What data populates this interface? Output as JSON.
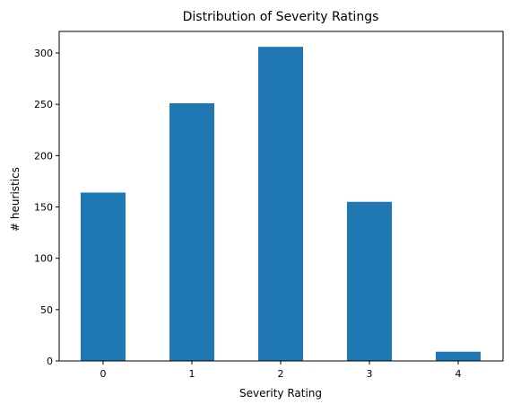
{
  "chart_data": {
    "type": "bar",
    "title": "Distribution of Severity Ratings",
    "xlabel": "Severity Rating",
    "ylabel": "# heuristics",
    "categories": [
      "0",
      "1",
      "2",
      "3",
      "4"
    ],
    "values": [
      164,
      251,
      306,
      155,
      9
    ],
    "ylim": [
      0,
      321
    ],
    "yticks": [
      "0",
      "50",
      "100",
      "150",
      "200",
      "250",
      "300"
    ],
    "grid": false,
    "legend": "none",
    "bar_color": "#1f77b4"
  }
}
